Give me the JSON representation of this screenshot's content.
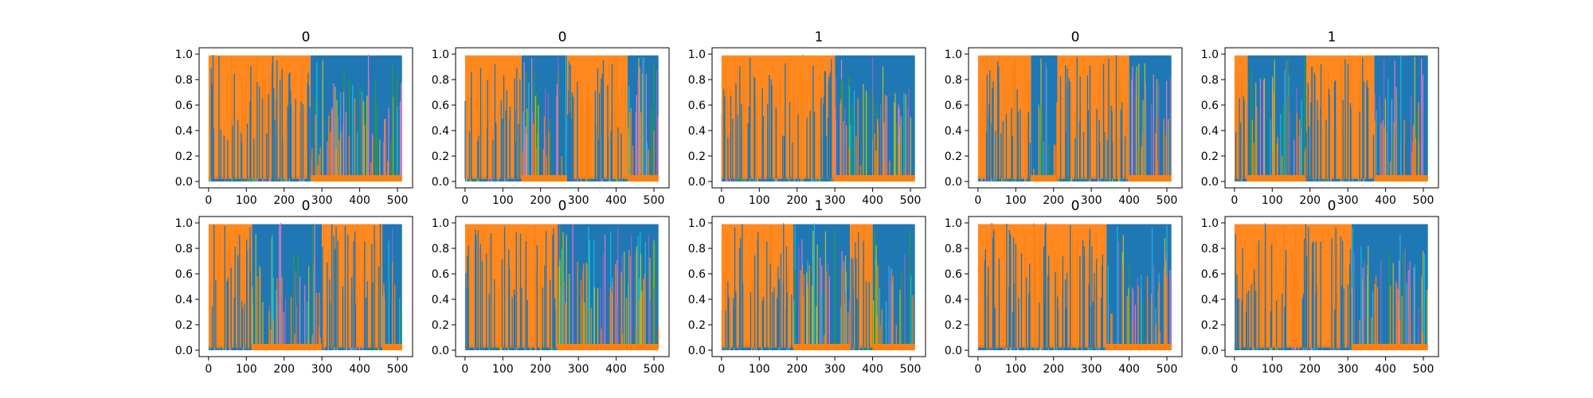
{
  "chart_data": [
    {
      "type": "area",
      "title": "0",
      "ylim": [
        0,
        1.0
      ],
      "xlim": [
        -25,
        540
      ],
      "xticks": [
        0,
        100,
        200,
        300,
        400,
        500
      ],
      "yticks": [
        0.0,
        0.2,
        0.4,
        0.6,
        0.8,
        1.0
      ],
      "series": [
        {
          "color": "#ff7f0e",
          "segments": [
            [
              0,
              270,
              "high"
            ],
            [
              270,
              512,
              "low"
            ]
          ]
        },
        {
          "color": "#1f77b4",
          "segments": [
            [
              0,
              270,
              "low"
            ],
            [
              270,
              512,
              "high"
            ]
          ]
        }
      ]
    },
    {
      "type": "area",
      "title": "0",
      "ylim": [
        0,
        1.0
      ],
      "xlim": [
        -25,
        540
      ],
      "xticks": [
        0,
        100,
        200,
        300,
        400,
        500
      ],
      "yticks": [
        0.0,
        0.2,
        0.4,
        0.6,
        0.8,
        1.0
      ],
      "series": [
        {
          "color": "#ff7f0e",
          "segments": [
            [
              0,
              150,
              "high"
            ],
            [
              150,
              270,
              "low"
            ],
            [
              270,
              430,
              "high"
            ],
            [
              430,
              512,
              "low"
            ]
          ]
        },
        {
          "color": "#1f77b4",
          "segments": [
            [
              0,
              150,
              "low"
            ],
            [
              150,
              270,
              "high"
            ],
            [
              270,
              430,
              "low"
            ],
            [
              430,
              512,
              "high"
            ]
          ]
        }
      ]
    },
    {
      "type": "area",
      "title": "1",
      "ylim": [
        0,
        1.0
      ],
      "xlim": [
        -25,
        540
      ],
      "xticks": [
        0,
        100,
        200,
        300,
        400,
        500
      ],
      "yticks": [
        0.0,
        0.2,
        0.4,
        0.6,
        0.8,
        1.0
      ],
      "series": [
        {
          "color": "#ff7f0e",
          "segments": [
            [
              0,
              300,
              "high"
            ],
            [
              300,
              512,
              "low"
            ]
          ]
        },
        {
          "color": "#1f77b4",
          "segments": [
            [
              0,
              300,
              "low"
            ],
            [
              300,
              512,
              "high"
            ]
          ]
        }
      ]
    },
    {
      "type": "area",
      "title": "0",
      "ylim": [
        0,
        1.0
      ],
      "xlim": [
        -25,
        540
      ],
      "xticks": [
        0,
        100,
        200,
        300,
        400,
        500
      ],
      "yticks": [
        0.0,
        0.2,
        0.4,
        0.6,
        0.8,
        1.0
      ],
      "series": [
        {
          "color": "#ff7f0e",
          "segments": [
            [
              0,
              140,
              "high"
            ],
            [
              140,
              210,
              "low"
            ],
            [
              210,
              400,
              "high"
            ],
            [
              400,
              512,
              "low"
            ]
          ]
        },
        {
          "color": "#1f77b4",
          "segments": [
            [
              0,
              140,
              "low"
            ],
            [
              140,
              210,
              "high"
            ],
            [
              210,
              400,
              "low"
            ],
            [
              400,
              512,
              "high"
            ]
          ]
        }
      ]
    },
    {
      "type": "area",
      "title": "1",
      "ylim": [
        0,
        1.0
      ],
      "xlim": [
        -25,
        540
      ],
      "xticks": [
        0,
        100,
        200,
        300,
        400,
        500
      ],
      "yticks": [
        0.0,
        0.2,
        0.4,
        0.6,
        0.8,
        1.0
      ],
      "series": [
        {
          "color": "#ff7f0e",
          "segments": [
            [
              0,
              35,
              "high"
            ],
            [
              35,
              190,
              "low"
            ],
            [
              190,
              370,
              "high"
            ],
            [
              370,
              512,
              "low"
            ]
          ]
        },
        {
          "color": "#1f77b4",
          "segments": [
            [
              0,
              35,
              "low"
            ],
            [
              35,
              190,
              "high"
            ],
            [
              190,
              370,
              "low"
            ],
            [
              370,
              512,
              "high"
            ]
          ]
        }
      ]
    },
    {
      "type": "area",
      "title": "0",
      "ylim": [
        0,
        1.0
      ],
      "xlim": [
        -25,
        540
      ],
      "xticks": [
        0,
        100,
        200,
        300,
        400,
        500
      ],
      "yticks": [
        0.0,
        0.2,
        0.4,
        0.6,
        0.8,
        1.0
      ],
      "series": [
        {
          "color": "#ff7f0e",
          "segments": [
            [
              0,
              115,
              "high"
            ],
            [
              115,
              300,
              "low"
            ],
            [
              300,
              460,
              "high"
            ],
            [
              460,
              512,
              "low"
            ]
          ]
        },
        {
          "color": "#1f77b4",
          "segments": [
            [
              0,
              115,
              "low"
            ],
            [
              115,
              300,
              "high"
            ],
            [
              300,
              460,
              "low"
            ],
            [
              460,
              512,
              "high"
            ]
          ]
        }
      ]
    },
    {
      "type": "area",
      "title": "0",
      "ylim": [
        0,
        1.0
      ],
      "xlim": [
        -25,
        540
      ],
      "xticks": [
        0,
        100,
        200,
        300,
        400,
        500
      ],
      "yticks": [
        0.0,
        0.2,
        0.4,
        0.6,
        0.8,
        1.0
      ],
      "series": [
        {
          "color": "#ff7f0e",
          "segments": [
            [
              0,
              245,
              "high"
            ],
            [
              245,
              512,
              "low"
            ]
          ]
        },
        {
          "color": "#1f77b4",
          "segments": [
            [
              0,
              245,
              "low"
            ],
            [
              245,
              512,
              "high"
            ]
          ]
        }
      ]
    },
    {
      "type": "area",
      "title": "1",
      "ylim": [
        0,
        1.0
      ],
      "xlim": [
        -25,
        540
      ],
      "xticks": [
        0,
        100,
        200,
        300,
        400,
        500
      ],
      "yticks": [
        0.0,
        0.2,
        0.4,
        0.6,
        0.8,
        1.0
      ],
      "series": [
        {
          "color": "#ff7f0e",
          "segments": [
            [
              0,
              190,
              "high"
            ],
            [
              190,
              340,
              "low"
            ],
            [
              340,
              400,
              "high"
            ],
            [
              400,
              512,
              "low"
            ]
          ]
        },
        {
          "color": "#1f77b4",
          "segments": [
            [
              0,
              190,
              "low"
            ],
            [
              190,
              340,
              "high"
            ],
            [
              340,
              400,
              "low"
            ],
            [
              400,
              512,
              "high"
            ]
          ]
        }
      ]
    },
    {
      "type": "area",
      "title": "0",
      "ylim": [
        0,
        1.0
      ],
      "xlim": [
        -25,
        540
      ],
      "xticks": [
        0,
        100,
        200,
        300,
        400,
        500
      ],
      "yticks": [
        0.0,
        0.2,
        0.4,
        0.6,
        0.8,
        1.0
      ],
      "series": [
        {
          "color": "#ff7f0e",
          "segments": [
            [
              0,
              340,
              "high"
            ],
            [
              340,
              512,
              "low"
            ]
          ]
        },
        {
          "color": "#1f77b4",
          "segments": [
            [
              0,
              340,
              "low"
            ],
            [
              340,
              512,
              "high"
            ]
          ]
        }
      ]
    },
    {
      "type": "area",
      "title": "0",
      "ylim": [
        0,
        1.0
      ],
      "xlim": [
        -25,
        540
      ],
      "xticks": [
        0,
        100,
        200,
        300,
        400,
        500
      ],
      "yticks": [
        0.0,
        0.2,
        0.4,
        0.6,
        0.8,
        1.0
      ],
      "series": [
        {
          "color": "#ff7f0e",
          "segments": [
            [
              0,
              310,
              "high"
            ],
            [
              310,
              512,
              "low"
            ]
          ]
        },
        {
          "color": "#1f77b4",
          "segments": [
            [
              0,
              310,
              "low"
            ],
            [
              310,
              512,
              "high"
            ]
          ]
        }
      ]
    }
  ],
  "colors": {
    "orange": "#ff7f0e",
    "blue": "#1f77b4",
    "cyan": "#17becf",
    "olive": "#bcbd22",
    "green": "#2ca02c",
    "pink": "#e377c2",
    "purple": "#9467bd"
  }
}
